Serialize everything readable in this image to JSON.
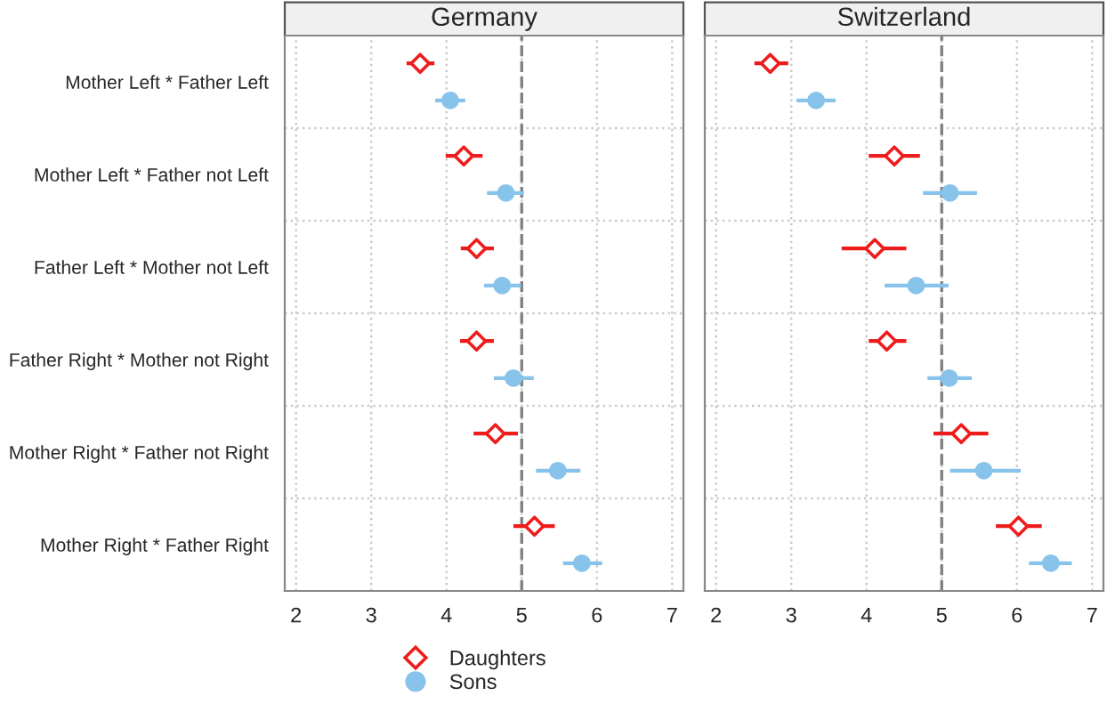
{
  "chart_data": [
    {
      "type": "scatter",
      "orientation": "horizontal",
      "title": "Germany",
      "categories": [
        "Mother Left * Father Left",
        "Mother Left * Father not Left",
        "Father Left * Mother not Left",
        "Father Right * Mother not Right",
        "Mother Right * Father not Right",
        "Mother Right * Father Right"
      ],
      "series": [
        {
          "name": "Daughters",
          "color": "#ee1c1c",
          "marker": "diamond",
          "values": [
            3.65,
            4.23,
            4.4,
            4.4,
            4.65,
            5.17
          ],
          "errors": [
            [
              3.47,
              3.84
            ],
            [
              3.99,
              4.48
            ],
            [
              4.19,
              4.63
            ],
            [
              4.18,
              4.63
            ],
            [
              4.36,
              4.95
            ],
            [
              4.89,
              5.44
            ]
          ]
        },
        {
          "name": "Sons",
          "color": "#87c3ea",
          "marker": "circle",
          "values": [
            4.05,
            4.79,
            4.74,
            4.89,
            5.48,
            5.8
          ],
          "errors": [
            [
              3.85,
              4.25
            ],
            [
              4.54,
              5.03
            ],
            [
              4.5,
              4.99
            ],
            [
              4.63,
              5.16
            ],
            [
              5.19,
              5.78
            ],
            [
              5.55,
              6.07
            ]
          ]
        }
      ],
      "xlim": [
        1.85,
        7.15
      ],
      "xticks": [
        2,
        3,
        4,
        5,
        6,
        7
      ],
      "grid": true,
      "legend": "bottom",
      "ref_lines": [
        {
          "axis": "x",
          "value": 5,
          "color": "#808080",
          "line_style": "dashed"
        }
      ]
    },
    {
      "type": "scatter",
      "orientation": "horizontal",
      "title": "Switzerland",
      "categories": [
        null,
        null,
        null,
        null,
        null,
        null
      ],
      "series": [
        {
          "color": "#ee1c1c",
          "marker": "diamond",
          "values": [
            2.72,
            4.37,
            4.11,
            4.27,
            5.26,
            6.02
          ],
          "errors": [
            [
              2.51,
              2.96
            ],
            [
              4.03,
              4.71
            ],
            [
              3.67,
              4.53
            ],
            [
              4.03,
              4.53
            ],
            [
              4.89,
              5.62
            ],
            [
              5.72,
              6.33
            ]
          ]
        },
        {
          "color": "#87c3ea",
          "marker": "circle",
          "values": [
            3.33,
            5.11,
            4.66,
            5.1,
            5.56,
            6.45
          ],
          "errors": [
            [
              3.07,
              3.59
            ],
            [
              4.75,
              5.47
            ],
            [
              4.24,
              5.09
            ],
            [
              4.81,
              5.4
            ],
            [
              5.11,
              6.05
            ],
            [
              6.16,
              6.73
            ]
          ]
        }
      ],
      "xlim": [
        1.85,
        7.15
      ],
      "xticks": [
        2,
        3,
        4,
        5,
        6,
        7
      ],
      "grid": true,
      "tick_labels": "x",
      "ref_lines": [
        {
          "axis": "x",
          "value": 5,
          "color": "#808080",
          "line_style": "dashed"
        }
      ]
    }
  ]
}
